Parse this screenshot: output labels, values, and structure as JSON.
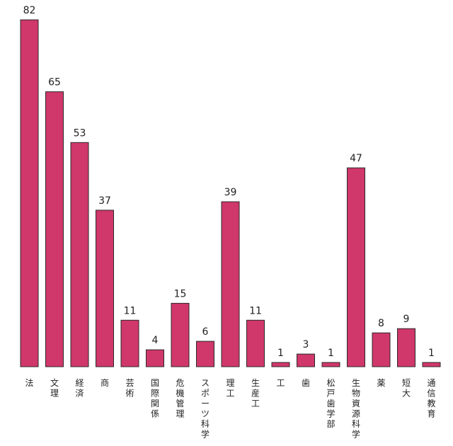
{
  "chart_data": {
    "type": "bar",
    "categories": [
      "法",
      "文理",
      "経済",
      "商",
      "芸術",
      "国際関係",
      "危機管理",
      "スポーツ科学",
      "理工",
      "生産工",
      "工",
      "歯",
      "松戸歯学部",
      "生物資源科学",
      "薬",
      "短大",
      "通信教育"
    ],
    "values": [
      82,
      65,
      53,
      37,
      11,
      4,
      15,
      6,
      39,
      11,
      1,
      3,
      1,
      47,
      8,
      9,
      1
    ],
    "ylim": [
      0,
      82
    ],
    "colors": {
      "bar": "#d0376a",
      "outline": "#2a2a2a"
    },
    "grid": false,
    "legend": "none"
  }
}
